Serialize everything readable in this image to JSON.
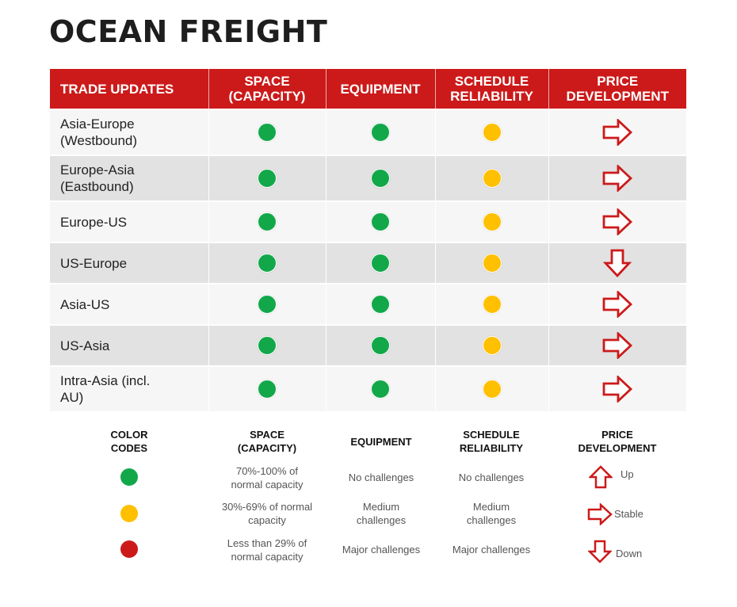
{
  "title": "OCEAN FREIGHT",
  "colors": {
    "header_red": "#cc1a1a",
    "green": "#12a84a",
    "amber": "#ffc000",
    "red": "#cc1a1a"
  },
  "table": {
    "headers": [
      "TRADE UPDATES",
      "SPACE (CAPACITY)",
      "EQUIPMENT",
      "SCHEDULE RELIABILITY",
      "PRICE DEVELOPMENT"
    ],
    "rows": [
      {
        "route": "Asia-Europe (Westbound)",
        "space": "green",
        "equipment": "green",
        "schedule": "amber",
        "price": "stable"
      },
      {
        "route": "Europe-Asia (Eastbound)",
        "space": "green",
        "equipment": "green",
        "schedule": "amber",
        "price": "stable"
      },
      {
        "route": "Europe-US",
        "space": "green",
        "equipment": "green",
        "schedule": "amber",
        "price": "stable"
      },
      {
        "route": "US-Europe",
        "space": "green",
        "equipment": "green",
        "schedule": "amber",
        "price": "down"
      },
      {
        "route": "Asia-US",
        "space": "green",
        "equipment": "green",
        "schedule": "amber",
        "price": "stable"
      },
      {
        "route": "US-Asia",
        "space": "green",
        "equipment": "green",
        "schedule": "amber",
        "price": "stable"
      },
      {
        "route": "Intra-Asia (incl. AU)",
        "space": "green",
        "equipment": "green",
        "schedule": "amber",
        "price": "stable"
      }
    ]
  },
  "legend": {
    "headers": {
      "color_codes": "COLOR CODES",
      "space": "SPACE (CAPACITY)",
      "equipment": "EQUIPMENT",
      "schedule": "SCHEDULE RELIABILITY",
      "price": "PRICE DEVELOPMENT"
    },
    "space": [
      "70%-100% of normal capacity",
      "30%-69% of normal capacity",
      "Less than 29% of normal capacity"
    ],
    "equipment": [
      "No challenges",
      "Medium challenges",
      "Major challenges"
    ],
    "schedule": [
      "No challenges",
      "Medium challenges",
      "Major challenges"
    ],
    "price": [
      "Up",
      "Stable",
      "Down"
    ]
  }
}
